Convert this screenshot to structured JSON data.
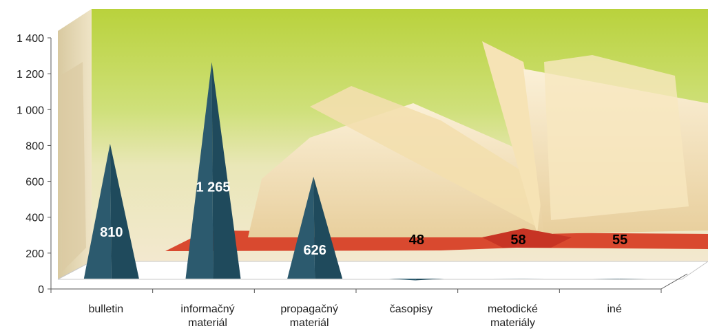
{
  "chart_data": {
    "type": "bar",
    "style": "3d-pyramid",
    "categories": [
      [
        "bulletin"
      ],
      [
        "informačný",
        "materiál"
      ],
      [
        "propagačný",
        "materiál"
      ],
      [
        "časopisy"
      ],
      [
        "metodické",
        "materiály"
      ],
      [
        "iné"
      ]
    ],
    "values": [
      810,
      1265,
      626,
      48,
      58,
      55
    ],
    "value_labels": [
      "810",
      "1 265",
      "626",
      "48",
      "58",
      "55"
    ],
    "label_colors": [
      "#ffffff",
      "#ffffff",
      "#ffffff",
      "#000000",
      "#000000",
      "#000000"
    ],
    "ylim": [
      0,
      1400
    ],
    "yticks": [
      0,
      200,
      400,
      600,
      800,
      1000,
      1200,
      1400
    ],
    "ytick_labels": [
      "0",
      "200",
      "400",
      "600",
      "800",
      "1 000",
      "1 200",
      "1 400"
    ],
    "grid": false,
    "legend": "none",
    "bar_color": "#2c5a6e",
    "background": "photo of an open book on a green backdrop"
  }
}
